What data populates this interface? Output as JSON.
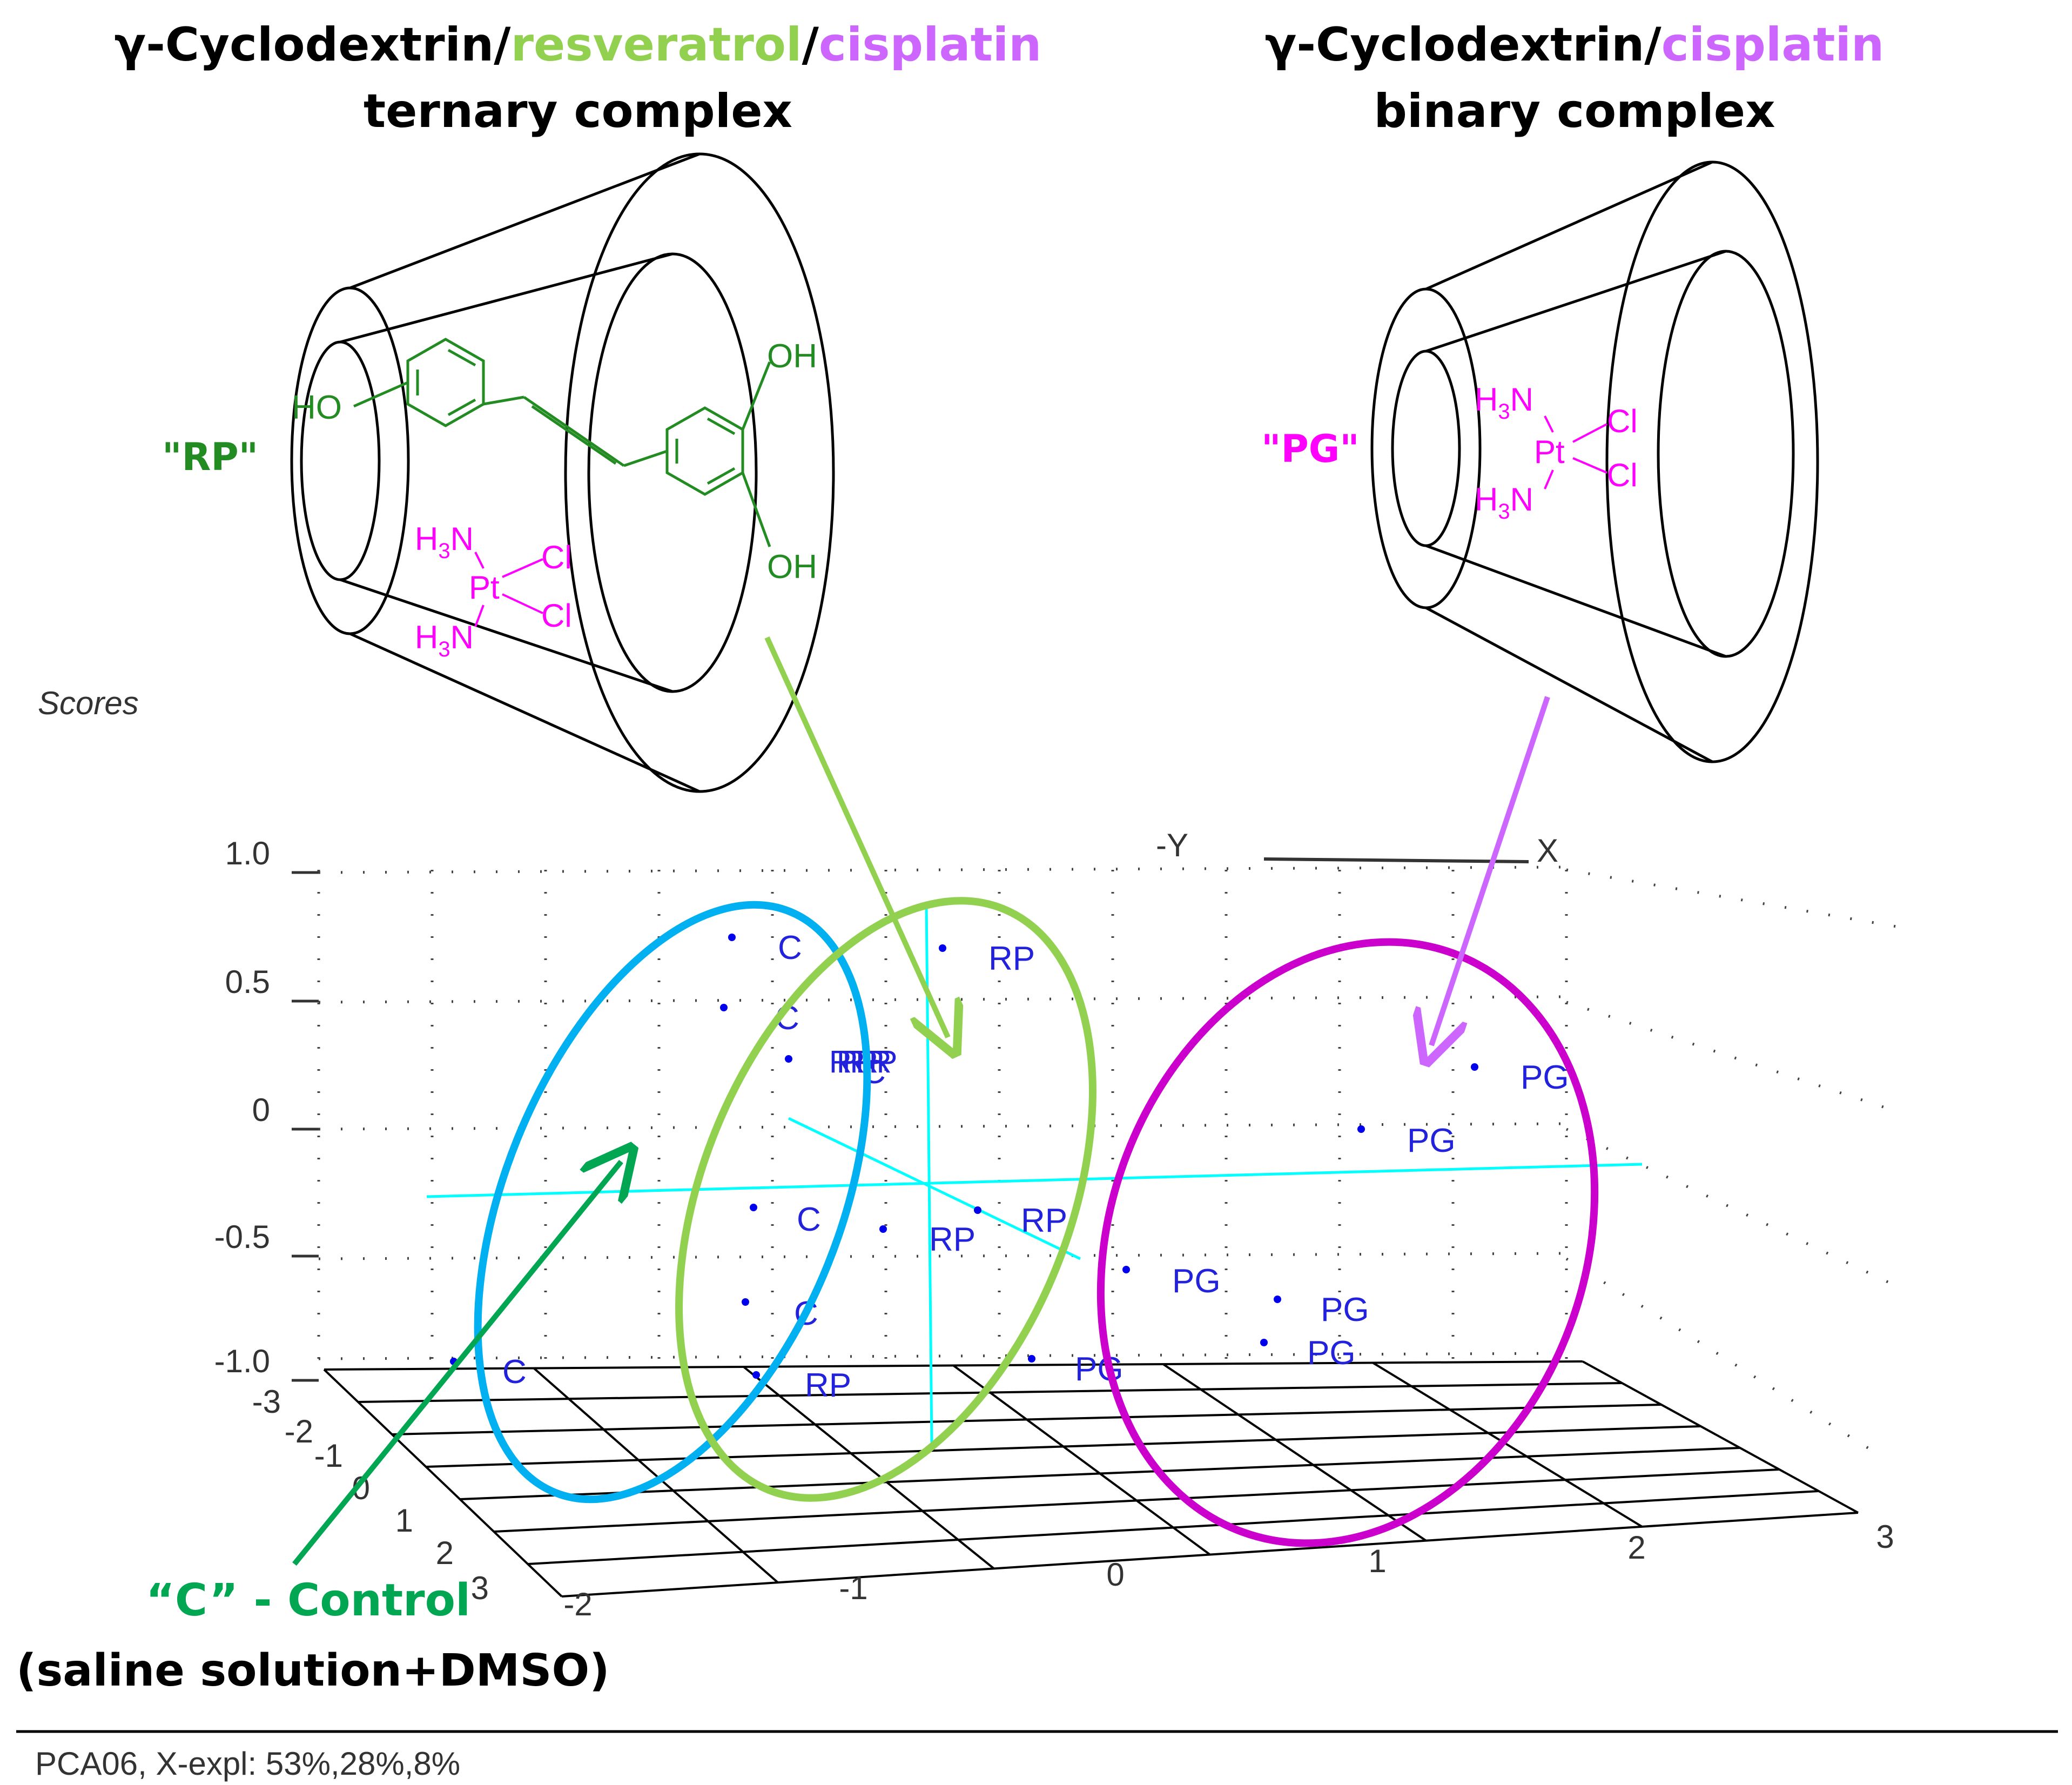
{
  "ternary_title": {
    "part1": "γ-Cyclodextrin/",
    "part2": "resveratrol",
    "part3": "/",
    "part4": "cisplatin",
    "line2": "ternary complex"
  },
  "binary_title": {
    "part1": "γ-Cyclodextrin/",
    "part2": "cisplatin",
    "line2": "binary complex"
  },
  "rp_label": "\"RP\"",
  "pg_label": "\"PG\"",
  "chem": {
    "oh": "OH",
    "ho": "HO",
    "h3n": "H3N",
    "pt": "Pt",
    "cl": "Cl",
    "h": "H",
    "n": "N",
    "sub3": "3"
  },
  "plot": {
    "scores": "Scores",
    "axis_neg_y": "-Y",
    "axis_x": "X"
  },
  "control_label": "“C” - Control",
  "control_sub": "(saline solution+DMSO)",
  "footer": "PCA06, X-expl: 53%,28%,8%",
  "colors": {
    "green_light": "#92d050",
    "green_dark": "#00a651",
    "magenta": "#cc00cc",
    "violet": "#cc66ff",
    "blue_circle": "#00b0f0",
    "chem_green": "#228b22",
    "chem_magenta": "#ff00ff",
    "point_blue": "#0000ee",
    "axis_cyan": "#00ffff"
  },
  "chart_data": {
    "type": "scatter",
    "title": "Scores",
    "z_ticks": [
      "1.0",
      "0.5",
      "0",
      "-0.5",
      "-1.0"
    ],
    "y_ticks": [
      "-3",
      "-2",
      "-1",
      "0",
      "1",
      "2",
      "3"
    ],
    "x_ticks": [
      "-2",
      "-1",
      "0",
      "1",
      "2",
      "3"
    ],
    "points": [
      {
        "label": "C"
      },
      {
        "label": "C"
      },
      {
        "label": "C"
      },
      {
        "label": "C"
      },
      {
        "label": "C"
      },
      {
        "label": "C"
      },
      {
        "label": "RP"
      },
      {
        "label": "RP"
      },
      {
        "label": "RP"
      },
      {
        "label": "RP"
      },
      {
        "label": "PG"
      },
      {
        "label": "PG"
      },
      {
        "label": "PG"
      },
      {
        "label": "PG"
      },
      {
        "label": "PG"
      },
      {
        "label": "PG"
      }
    ],
    "clusters": [
      {
        "label": "“C” - Control"
      },
      {
        "label": "\"RP\""
      },
      {
        "label": "\"PG\""
      }
    ],
    "footer": "PCA06, X-expl: 53%,28%,8%"
  }
}
